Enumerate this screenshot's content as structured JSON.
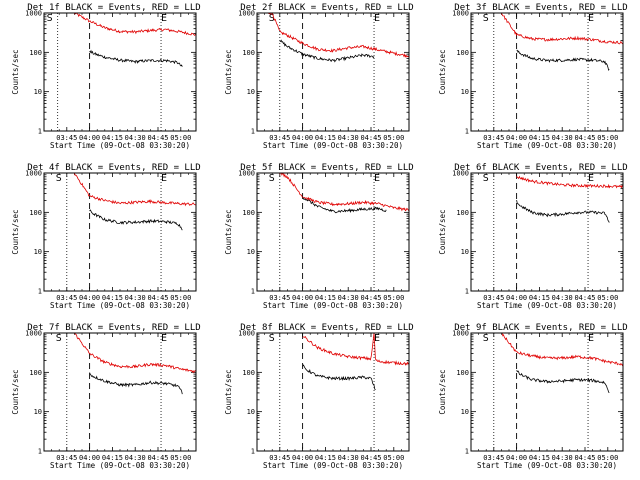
{
  "chart_data": {
    "type": "line",
    "xlabel": "Start Time (09-Oct-08 03:30:20)",
    "ylabel": "Counts/sec",
    "ylog": true,
    "ylim": [
      1,
      1000
    ],
    "y_ticks": [
      "1",
      "10",
      "100",
      "1000"
    ],
    "x_ticks": [
      "03:45",
      "04:00",
      "04:15",
      "04:30",
      "04:45",
      "05:00"
    ],
    "x_tick_minutes": [
      15,
      30,
      45,
      60,
      75,
      90
    ],
    "xlim_minutes": [
      0,
      100
    ],
    "start_marker": "S",
    "end_marker": "E",
    "series_colors": {
      "events": "#000000",
      "lld": "#e00000"
    },
    "panels": [
      {
        "title": "Det 1f BLACK = Events, RED = LLD",
        "start_min": 9,
        "end_min": 77,
        "dashed_min": 30,
        "lld_x": [
          20,
          30,
          40,
          50,
          60,
          70,
          80,
          90,
          100
        ],
        "lld_y": [
          1000,
          620,
          420,
          340,
          330,
          360,
          380,
          330,
          280
        ],
        "events_x": [
          30,
          32,
          40,
          50,
          60,
          70,
          80,
          88,
          91
        ],
        "events_y": [
          110,
          95,
          75,
          63,
          58,
          62,
          62,
          55,
          42
        ]
      },
      {
        "title": "Det 2f BLACK = Events, RED = LLD",
        "start_min": 15,
        "end_min": 77,
        "dashed_min": 30,
        "lld_x": [
          5,
          10,
          15,
          20,
          30,
          40,
          50,
          60,
          70,
          80,
          90,
          100
        ],
        "lld_y": [
          1000,
          1000,
          330,
          270,
          170,
          120,
          110,
          130,
          140,
          115,
          95,
          80
        ],
        "events_x": [
          15,
          20,
          30,
          40,
          50,
          60,
          70,
          77
        ],
        "events_y": [
          200,
          140,
          90,
          70,
          62,
          72,
          85,
          78
        ]
      },
      {
        "title": "Det 3f BLACK = Events, RED = LLD",
        "start_min": 15,
        "end_min": 77,
        "dashed_min": 30,
        "lld_x": [
          20,
          30,
          40,
          50,
          60,
          70,
          80,
          90,
          100
        ],
        "lld_y": [
          1000,
          280,
          220,
          210,
          220,
          230,
          210,
          185,
          175
        ],
        "events_x": [
          30,
          32,
          40,
          50,
          60,
          70,
          80,
          88,
          91
        ],
        "events_y": [
          110,
          95,
          70,
          62,
          63,
          66,
          63,
          58,
          35
        ]
      },
      {
        "title": "Det 4f BLACK = Events, RED = LLD",
        "start_min": 15,
        "end_min": 77,
        "dashed_min": 30,
        "lld_x": [
          20,
          30,
          40,
          50,
          60,
          70,
          80,
          90,
          100
        ],
        "lld_y": [
          1000,
          260,
          200,
          170,
          180,
          190,
          175,
          165,
          160
        ],
        "events_x": [
          30,
          32,
          40,
          50,
          60,
          70,
          80,
          88,
          91
        ],
        "events_y": [
          110,
          95,
          65,
          55,
          56,
          60,
          58,
          52,
          38
        ]
      },
      {
        "title": "Det 5f BLACK = Events, RED = LLD",
        "start_min": 15,
        "end_min": 77,
        "dashed_min": 30,
        "lld_x": [
          15,
          20,
          30,
          40,
          50,
          60,
          70,
          80,
          90,
          100
        ],
        "lld_y": [
          1000,
          800,
          250,
          180,
          160,
          165,
          180,
          165,
          130,
          115
        ],
        "events_x": [
          30,
          32,
          40,
          50,
          60,
          70,
          80,
          85
        ],
        "events_y": [
          240,
          220,
          140,
          105,
          110,
          120,
          125,
          110
        ]
      },
      {
        "title": "Det 6f BLACK = Events, RED = LLD",
        "start_min": 15,
        "end_min": 77,
        "dashed_min": 30,
        "lld_x": [
          30,
          40,
          50,
          60,
          70,
          80,
          90,
          100
        ],
        "lld_y": [
          800,
          620,
          550,
          500,
          480,
          470,
          465,
          440
        ],
        "events_x": [
          30,
          32,
          40,
          50,
          60,
          70,
          80,
          88,
          91
        ],
        "events_y": [
          190,
          150,
          100,
          85,
          90,
          100,
          100,
          95,
          55
        ]
      },
      {
        "title": "Det 7f BLACK = Events, RED = LLD",
        "start_min": 15,
        "end_min": 77,
        "dashed_min": 30,
        "lld_x": [
          20,
          30,
          40,
          50,
          60,
          70,
          80,
          90,
          100
        ],
        "lld_y": [
          1000,
          300,
          180,
          140,
          140,
          160,
          150,
          120,
          105
        ],
        "events_x": [
          30,
          32,
          40,
          50,
          60,
          70,
          80,
          88,
          91
        ],
        "events_y": [
          95,
          80,
          60,
          48,
          48,
          55,
          52,
          45,
          30
        ]
      },
      {
        "title": "Det 8f BLACK = Events, RED = LLD",
        "start_min": 15,
        "end_min": 77,
        "dashed_min": 30,
        "lld_x": [
          30,
          40,
          50,
          60,
          70,
          75,
          77,
          78,
          80,
          90,
          100
        ],
        "lld_y": [
          850,
          420,
          300,
          250,
          230,
          220,
          1000,
          200,
          190,
          175,
          165
        ],
        "events_x": [
          30,
          32,
          40,
          50,
          60,
          70,
          75,
          78
        ],
        "events_y": [
          150,
          120,
          80,
          70,
          70,
          75,
          70,
          35
        ]
      },
      {
        "title": "Det 9f BLACK = Events, RED = LLD",
        "start_min": 15,
        "end_min": 77,
        "dashed_min": 30,
        "lld_x": [
          20,
          30,
          40,
          50,
          60,
          70,
          80,
          90,
          100
        ],
        "lld_y": [
          1000,
          320,
          260,
          230,
          230,
          250,
          230,
          185,
          160
        ],
        "events_x": [
          30,
          32,
          40,
          50,
          60,
          70,
          80,
          88,
          91
        ],
        "events_y": [
          110,
          90,
          65,
          58,
          60,
          65,
          62,
          55,
          30
        ]
      }
    ]
  }
}
